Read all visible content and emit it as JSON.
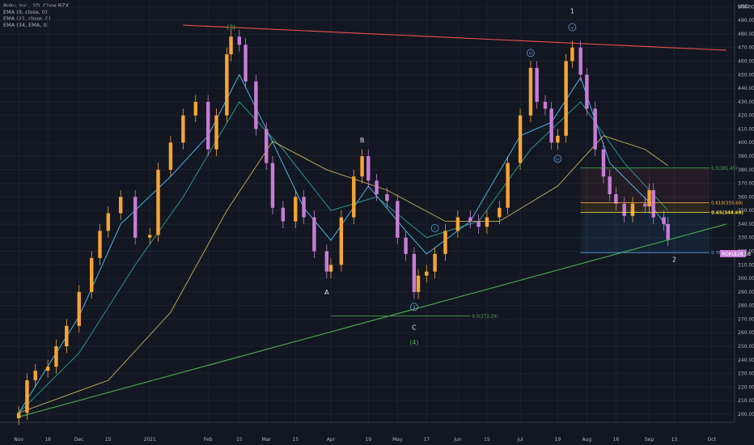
{
  "legend": {
    "symbol": "Roku, Inc., 1D, Cboe BZX",
    "ema8": "EMA (8, close, 0)",
    "ema21": "EMA (21, close, 0)",
    "ema34": "EMA (34, EMA, 0)"
  },
  "currency": "USD",
  "price_tag": {
    "symbol": "ROKU",
    "value": "328.58"
  },
  "chart_data": {
    "type": "candlestick",
    "title": "",
    "ylim": [
      194,
      505
    ],
    "y_ticks": [
      200,
      210,
      220,
      230,
      240,
      250,
      260,
      270,
      280,
      290,
      300,
      310,
      320,
      330,
      340,
      350,
      360,
      370,
      380,
      390,
      400,
      410,
      420,
      430,
      440,
      450,
      460,
      470,
      480,
      490,
      500
    ],
    "x_tick_labels": [
      "Nov",
      "16",
      "Dec",
      "15",
      "2021",
      "Feb",
      "15",
      "Mar",
      "15",
      "Apr",
      "19",
      "May",
      "17",
      "Jun",
      "15",
      "Jul",
      "19",
      "Aug",
      "16",
      "Sep",
      "13",
      "Oct"
    ],
    "x_tick_dates": [
      "2020-11-02",
      "2020-11-16",
      "2020-12-01",
      "2020-12-15",
      "2021-01-04",
      "2021-02-01",
      "2021-02-16",
      "2021-03-01",
      "2021-03-15",
      "2021-04-01",
      "2021-04-19",
      "2021-05-03",
      "2021-05-17",
      "2021-06-01",
      "2021-06-15",
      "2021-07-01",
      "2021-07-19",
      "2021-08-02",
      "2021-08-16",
      "2021-09-01",
      "2021-09-13",
      "2021-10-01"
    ],
    "grid": true,
    "series": [
      {
        "name": "Roku, Inc.",
        "style": "candles",
        "up_color": "#f7a534",
        "down_color": "#c77dd6",
        "points": [
          {
            "x": "2020-11-02",
            "close": 201
          },
          {
            "x": "2020-11-06",
            "close": 225
          },
          {
            "x": "2020-11-10",
            "close": 232
          },
          {
            "x": "2020-11-16",
            "close": 235
          },
          {
            "x": "2020-11-20",
            "close": 250
          },
          {
            "x": "2020-11-25",
            "close": 265
          },
          {
            "x": "2020-12-01",
            "close": 290
          },
          {
            "x": "2020-12-07",
            "close": 315
          },
          {
            "x": "2020-12-11",
            "close": 335
          },
          {
            "x": "2020-12-15",
            "close": 348
          },
          {
            "x": "2020-12-21",
            "close": 360
          },
          {
            "x": "2020-12-28",
            "close": 330
          },
          {
            "x": "2021-01-04",
            "close": 332
          },
          {
            "x": "2021-01-08",
            "close": 380
          },
          {
            "x": "2021-01-14",
            "close": 400
          },
          {
            "x": "2021-01-20",
            "close": 420
          },
          {
            "x": "2021-01-26",
            "close": 430
          },
          {
            "x": "2021-02-01",
            "close": 395
          },
          {
            "x": "2021-02-05",
            "close": 420
          },
          {
            "x": "2021-02-10",
            "close": 465
          },
          {
            "x": "2021-02-12",
            "close": 478
          },
          {
            "x": "2021-02-16",
            "close": 472
          },
          {
            "x": "2021-02-19",
            "close": 445
          },
          {
            "x": "2021-02-24",
            "close": 410
          },
          {
            "x": "2021-03-01",
            "close": 385
          },
          {
            "x": "2021-03-04",
            "close": 352
          },
          {
            "x": "2021-03-09",
            "close": 342
          },
          {
            "x": "2021-03-15",
            "close": 360
          },
          {
            "x": "2021-03-19",
            "close": 345
          },
          {
            "x": "2021-03-24",
            "close": 320
          },
          {
            "x": "2021-03-30",
            "close": 305
          },
          {
            "x": "2021-04-01",
            "close": 310
          },
          {
            "x": "2021-04-06",
            "close": 345
          },
          {
            "x": "2021-04-12",
            "close": 375
          },
          {
            "x": "2021-04-16",
            "close": 390
          },
          {
            "x": "2021-04-19",
            "close": 372
          },
          {
            "x": "2021-04-23",
            "close": 362
          },
          {
            "x": "2021-04-28",
            "close": 357
          },
          {
            "x": "2021-05-03",
            "close": 330
          },
          {
            "x": "2021-05-07",
            "close": 318
          },
          {
            "x": "2021-05-11",
            "close": 290
          },
          {
            "x": "2021-05-13",
            "close": 302
          },
          {
            "x": "2021-05-17",
            "close": 305
          },
          {
            "x": "2021-05-21",
            "close": 318
          },
          {
            "x": "2021-05-26",
            "close": 335
          },
          {
            "x": "2021-06-01",
            "close": 345
          },
          {
            "x": "2021-06-07",
            "close": 342
          },
          {
            "x": "2021-06-11",
            "close": 338
          },
          {
            "x": "2021-06-15",
            "close": 345
          },
          {
            "x": "2021-06-21",
            "close": 352
          },
          {
            "x": "2021-06-25",
            "close": 385
          },
          {
            "x": "2021-07-01",
            "close": 420
          },
          {
            "x": "2021-07-06",
            "close": 455
          },
          {
            "x": "2021-07-09",
            "close": 430
          },
          {
            "x": "2021-07-13",
            "close": 425
          },
          {
            "x": "2021-07-16",
            "close": 400
          },
          {
            "x": "2021-07-19",
            "close": 405
          },
          {
            "x": "2021-07-23",
            "close": 460
          },
          {
            "x": "2021-07-26",
            "close": 470
          },
          {
            "x": "2021-07-30",
            "close": 450
          },
          {
            "x": "2021-08-02",
            "close": 425
          },
          {
            "x": "2021-08-06",
            "close": 395
          },
          {
            "x": "2021-08-10",
            "close": 375
          },
          {
            "x": "2021-08-13",
            "close": 362
          },
          {
            "x": "2021-08-16",
            "close": 355
          },
          {
            "x": "2021-08-20",
            "close": 346
          },
          {
            "x": "2021-08-24",
            "close": 355
          },
          {
            "x": "2021-08-30",
            "close": 353
          },
          {
            "x": "2021-09-01",
            "close": 365
          },
          {
            "x": "2021-09-03",
            "close": 345
          },
          {
            "x": "2021-09-08",
            "close": 340
          },
          {
            "x": "2021-09-10",
            "close": 328.58
          }
        ]
      },
      {
        "name": "EMA (8, close, 0)",
        "style": "line",
        "color": "#4fc3f7",
        "points": [
          {
            "x": "2020-11-02",
            "y": 201
          },
          {
            "x": "2020-12-01",
            "y": 272
          },
          {
            "x": "2020-12-21",
            "y": 340
          },
          {
            "x": "2021-01-14",
            "y": 375
          },
          {
            "x": "2021-02-01",
            "y": 405
          },
          {
            "x": "2021-02-16",
            "y": 450
          },
          {
            "x": "2021-03-01",
            "y": 410
          },
          {
            "x": "2021-03-19",
            "y": 352
          },
          {
            "x": "2021-04-01",
            "y": 328
          },
          {
            "x": "2021-04-19",
            "y": 368
          },
          {
            "x": "2021-05-07",
            "y": 335
          },
          {
            "x": "2021-05-17",
            "y": 318
          },
          {
            "x": "2021-06-07",
            "y": 342
          },
          {
            "x": "2021-07-01",
            "y": 405
          },
          {
            "x": "2021-07-16",
            "y": 415
          },
          {
            "x": "2021-07-30",
            "y": 448
          },
          {
            "x": "2021-08-13",
            "y": 385
          },
          {
            "x": "2021-09-01",
            "y": 356
          },
          {
            "x": "2021-09-10",
            "y": 337
          }
        ]
      },
      {
        "name": "EMA (21, close, 0)",
        "style": "line",
        "color": "#26a69a",
        "points": [
          {
            "x": "2020-11-02",
            "y": 201
          },
          {
            "x": "2020-12-01",
            "y": 245
          },
          {
            "x": "2020-12-28",
            "y": 310
          },
          {
            "x": "2021-01-20",
            "y": 360
          },
          {
            "x": "2021-02-16",
            "y": 430
          },
          {
            "x": "2021-03-09",
            "y": 395
          },
          {
            "x": "2021-04-01",
            "y": 350
          },
          {
            "x": "2021-04-23",
            "y": 360
          },
          {
            "x": "2021-05-17",
            "y": 330
          },
          {
            "x": "2021-06-11",
            "y": 342
          },
          {
            "x": "2021-07-06",
            "y": 395
          },
          {
            "x": "2021-07-30",
            "y": 430
          },
          {
            "x": "2021-08-20",
            "y": 385
          },
          {
            "x": "2021-09-10",
            "y": 350
          }
        ]
      },
      {
        "name": "EMA (34, EMA, 0)",
        "style": "line",
        "color": "#c9b458",
        "points": [
          {
            "x": "2020-11-02",
            "y": 201
          },
          {
            "x": "2020-12-15",
            "y": 225
          },
          {
            "x": "2021-01-14",
            "y": 275
          },
          {
            "x": "2021-02-10",
            "y": 350
          },
          {
            "x": "2021-03-04",
            "y": 401
          },
          {
            "x": "2021-03-30",
            "y": 380
          },
          {
            "x": "2021-04-28",
            "y": 365
          },
          {
            "x": "2021-05-26",
            "y": 342
          },
          {
            "x": "2021-06-21",
            "y": 342
          },
          {
            "x": "2021-07-19",
            "y": 368
          },
          {
            "x": "2021-08-10",
            "y": 405
          },
          {
            "x": "2021-08-30",
            "y": 395
          },
          {
            "x": "2021-09-10",
            "y": 383
          }
        ]
      }
    ],
    "trendlines": [
      {
        "name": "resistance",
        "color": "#ef5350",
        "from": {
          "x": "2021-01-20",
          "y": 486.5
        },
        "to": {
          "x": "2021-10-08",
          "y": 468
        }
      },
      {
        "name": "support",
        "color": "#4caf50",
        "from": {
          "x": "2020-11-02",
          "y": 198
        },
        "to": {
          "x": "2021-10-08",
          "y": 340
        }
      }
    ],
    "fib_levels": [
      {
        "label": "0.5(381.45)",
        "y": 381.45,
        "color": "#4caf50",
        "bold": false
      },
      {
        "label": "0.618(355.68)",
        "y": 355.68,
        "color": "#ffb74d",
        "bold": false
      },
      {
        "label": "0.65(348.69)",
        "y": 348.69,
        "color": "#ffeb3b",
        "bold": true
      },
      {
        "label": "0.786(318.98)",
        "y": 318.98,
        "color": "#64b5f6",
        "bold": false
      }
    ],
    "fib_zone": {
      "from": "2021-07-30",
      "to": "2021-09-30"
    },
    "lower_fib": {
      "label": "0.5(272.29)",
      "y": 272.29,
      "color": "#4caf50",
      "from": "2021-04-01",
      "to": "2021-06-07"
    },
    "annotations": [
      {
        "text": "1",
        "x": "2021-07-26",
        "y": 497,
        "color": "#e0e0e0",
        "circled": false
      },
      {
        "text": "v",
        "x": "2021-07-26",
        "y": 485,
        "color": "#5b9bd5",
        "circled": true
      },
      {
        "text": "(3)",
        "x": "2021-02-12",
        "y": 485,
        "color": "#4caf50",
        "circled": false
      },
      {
        "text": "iii",
        "x": "2021-07-06",
        "y": 466,
        "color": "#5b9bd5",
        "circled": true
      },
      {
        "text": "iv",
        "x": "2021-07-19",
        "y": 388,
        "color": "#5b9bd5",
        "circled": true
      },
      {
        "text": "B",
        "x": "2021-04-16",
        "y": 402,
        "color": "#e0e0e0",
        "circled": false
      },
      {
        "text": "i",
        "x": "2021-05-21",
        "y": 337,
        "color": "#5b9bd5",
        "circled": true
      },
      {
        "text": "ii",
        "x": "2021-05-11",
        "y": 279,
        "color": "#5b9bd5",
        "circled": true
      },
      {
        "text": "A",
        "x": "2021-03-30",
        "y": 290,
        "color": "#e0e0e0",
        "circled": false
      },
      {
        "text": "C",
        "x": "2021-05-11",
        "y": 264,
        "color": "#e0e0e0",
        "circled": false
      },
      {
        "text": "(4)",
        "x": "2021-05-11",
        "y": 253,
        "color": "#4caf50",
        "circled": false
      },
      {
        "text": "2",
        "x": "2021-09-13",
        "y": 314,
        "color": "#e0e0e0",
        "circled": false
      }
    ]
  }
}
